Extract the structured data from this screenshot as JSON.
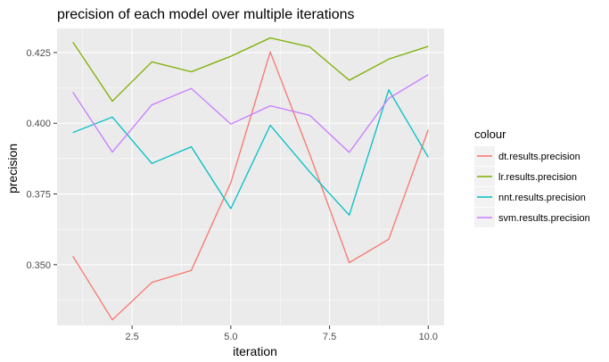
{
  "chart_data": {
    "type": "line",
    "title": "precision of each model over multiple iterations",
    "xlabel": "iteration",
    "ylabel": "precision",
    "x": [
      1,
      2,
      3,
      4,
      5,
      6,
      7,
      8,
      9,
      10
    ],
    "xlim": [
      0.6,
      10.4
    ],
    "ylim": [
      0.3285,
      0.4335
    ],
    "xticks": [
      2.5,
      5.0,
      7.5,
      10.0
    ],
    "xtick_labels": [
      "2.5",
      "5.0",
      "7.5",
      "10.0"
    ],
    "yticks": [
      0.35,
      0.375,
      0.4,
      0.425
    ],
    "ytick_labels": [
      "0.350",
      "0.375",
      "0.400",
      "0.425"
    ],
    "grid": true,
    "legend": {
      "title": "colour",
      "position": "right"
    },
    "series": [
      {
        "name": "dt.results.precision",
        "color": "#F8766D",
        "values": [
          0.353,
          0.3305,
          0.3437,
          0.348,
          0.379,
          0.4252,
          0.389,
          0.3507,
          0.359,
          0.3977
        ]
      },
      {
        "name": "lr.results.precision",
        "color": "#7CAE00",
        "values": [
          0.4287,
          0.4078,
          0.4217,
          0.4182,
          0.4237,
          0.4302,
          0.427,
          0.4152,
          0.4227,
          0.4272
        ]
      },
      {
        "name": "nnt.results.precision",
        "color": "#00BFC4",
        "values": [
          0.3967,
          0.4022,
          0.3858,
          0.3917,
          0.3698,
          0.3993,
          0.3828,
          0.3675,
          0.4118,
          0.388
        ]
      },
      {
        "name": "svm.results.precision",
        "color": "#C77CFF",
        "values": [
          0.411,
          0.3898,
          0.4065,
          0.4123,
          0.3997,
          0.4062,
          0.4028,
          0.3897,
          0.4088,
          0.4172
        ]
      }
    ]
  }
}
